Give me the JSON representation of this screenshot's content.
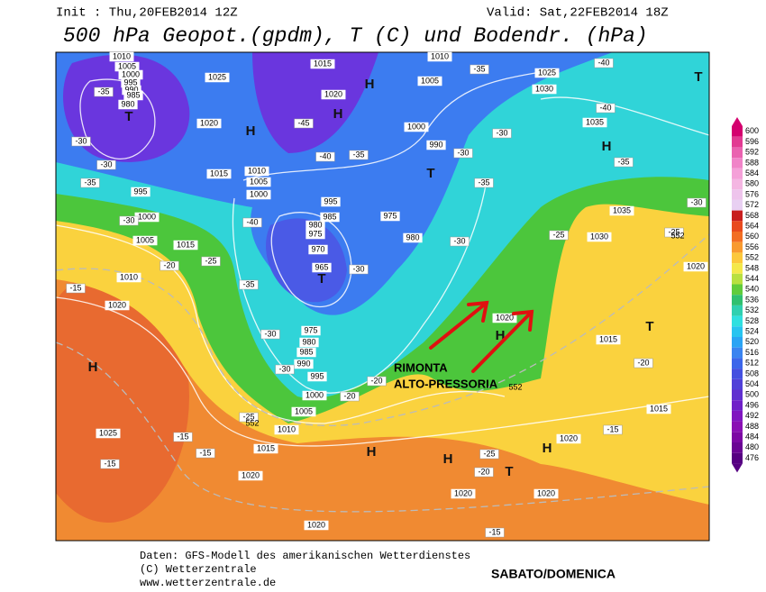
{
  "header": {
    "init": "Init : Thu,20FEB2014 12Z",
    "valid": "Valid: Sat,22FEB2014 18Z",
    "title": "500 hPa Geopot.(gpdm), T (C) und Bodendr. (hPa)"
  },
  "legend": {
    "levels": [
      600,
      596,
      592,
      588,
      584,
      580,
      576,
      572,
      568,
      564,
      560,
      556,
      552,
      548,
      544,
      540,
      536,
      532,
      528,
      524,
      520,
      516,
      512,
      508,
      504,
      500,
      496,
      492,
      488,
      484,
      480,
      476
    ],
    "colors": [
      "#d4006e",
      "#e23a92",
      "#ea62b0",
      "#f084c8",
      "#f4a0d8",
      "#f4b6e2",
      "#eec4ec",
      "#e8d0f2",
      "#c81e1e",
      "#e84a1e",
      "#f26e24",
      "#f89a30",
      "#fcc83c",
      "#f4e84a",
      "#b8e040",
      "#60cc3c",
      "#30c070",
      "#30d0b0",
      "#30e0e0",
      "#28c4f0",
      "#2aa4f4",
      "#3a84f0",
      "#3c66ea",
      "#4450e0",
      "#5040d8",
      "#6030d0",
      "#7020c8",
      "#8016c0",
      "#8a10b4",
      "#7c08a4",
      "#6a0494",
      "#560082"
    ]
  },
  "pressure_labels": [
    1010,
    1005,
    1000,
    995,
    990,
    985,
    980,
    1025,
    1020,
    1015,
    1010,
    1005,
    1000,
    995,
    985,
    980,
    975,
    970,
    965,
    975,
    980,
    985,
    990,
    995,
    1000,
    1005,
    1010,
    1015,
    1020,
    1025,
    1020,
    1010,
    1005,
    1000,
    995,
    1015,
    1015,
    1020,
    1005,
    1000,
    990,
    980,
    975,
    1010,
    1025,
    1030,
    1035,
    1035,
    1030,
    1015,
    1015,
    1020,
    1020,
    1020,
    1020,
    1020,
    1020
  ],
  "temperature_labels": [
    -35,
    -30,
    -30,
    -35,
    -30,
    -25,
    -20,
    -15,
    -40,
    -35,
    -30,
    -30,
    -30,
    -25,
    -20,
    -20,
    -15,
    -15,
    -15,
    -45,
    -40,
    -35,
    -30,
    -35,
    -30,
    -30,
    -25,
    -35,
    -40,
    -35,
    -30,
    -25,
    -20,
    -15,
    -25,
    -20,
    -15,
    -40
  ],
  "contour_labels": [
    552,
    552,
    552
  ],
  "centers": [
    "T",
    "H",
    "H",
    "H",
    "T",
    "T",
    "T",
    "H",
    "H",
    "H",
    "T",
    "H",
    "H",
    "H",
    "T"
  ],
  "annotation": {
    "lines": [
      "RIMONTA",
      "ALTO-PRESSORIA"
    ],
    "caption": "SABATO/DOMENICA"
  },
  "footer": [
    "Daten: GFS-Modell des amerikanischen Wetterdienstes",
    "(C) Wetterzentrale",
    "www.wetterzentrale.de"
  ]
}
